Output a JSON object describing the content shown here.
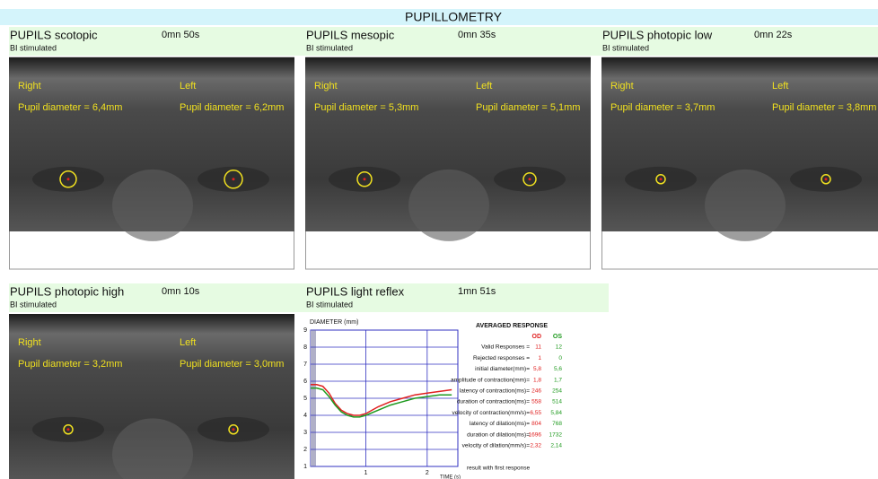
{
  "header": {
    "title": "PUPILLOMETRY"
  },
  "panels": [
    {
      "title": "PUPILS scotopic",
      "time": "0mn 50s",
      "subtitle": "BI stimulated",
      "right": "Right",
      "left": "Left",
      "right_diameter": "Pupil diameter = 6,4mm",
      "left_diameter": "Pupil diameter = 6,2mm"
    },
    {
      "title": "PUPILS mesopic",
      "time": "0mn 35s",
      "subtitle": "BI stimulated",
      "right": "Right",
      "left": "Left",
      "right_diameter": "Pupil diameter = 5,3mm",
      "left_diameter": "Pupil diameter = 5,1mm"
    },
    {
      "title": "PUPILS photopic low",
      "time": "0mn 22s",
      "subtitle": "BI stimulated",
      "right": "Right",
      "left": "Left",
      "right_diameter": "Pupil diameter = 3,7mm",
      "left_diameter": "Pupil diameter = 3,8mm"
    },
    {
      "title": "PUPILS photopic high",
      "time": "0mn 10s",
      "subtitle": "BI stimulated",
      "right": "Right",
      "left": "Left",
      "right_diameter": "Pupil diameter = 3,2mm",
      "left_diameter": "Pupil diameter = 3,0mm"
    }
  ],
  "light_reflex": {
    "title": "PUPILS light reflex",
    "time": "1mn 51s",
    "subtitle": "BI stimulated",
    "chart": {
      "type": "line",
      "y_label": "DIAMETER (mm)",
      "x_label": "TIME (s)",
      "x": [
        0.1,
        0.2,
        0.3,
        0.4,
        0.5,
        0.6,
        0.7,
        0.8,
        0.9,
        1.0,
        1.2,
        1.4,
        1.6,
        1.8,
        2.0,
        2.2,
        2.4
      ],
      "xlim": [
        0.1,
        2.5
      ],
      "ylim": [
        1,
        9
      ],
      "yticks": [
        1,
        2,
        3,
        4,
        5,
        6,
        7,
        8,
        9
      ],
      "xticks": [
        1,
        2
      ],
      "grid": true,
      "series": [
        {
          "color": "#e02020",
          "values": [
            5.8,
            5.8,
            5.7,
            5.3,
            4.7,
            4.3,
            4.1,
            4.0,
            4.0,
            4.1,
            4.5,
            4.8,
            5.0,
            5.2,
            5.3,
            5.4,
            5.5
          ]
        },
        {
          "color": "#1f9a1f",
          "values": [
            5.6,
            5.6,
            5.5,
            5.1,
            4.6,
            4.2,
            4.0,
            3.9,
            3.9,
            4.0,
            4.3,
            4.6,
            4.8,
            5.0,
            5.1,
            5.2,
            5.2
          ]
        }
      ]
    },
    "table": {
      "title": "AVERAGED RESPONSE",
      "columns": [
        "OD",
        "OS"
      ],
      "rows": [
        {
          "label": "Valid Responses =",
          "values": [
            "11",
            "12"
          ]
        },
        {
          "label": "Rejected responses =",
          "values": [
            "1",
            "0"
          ]
        },
        {
          "label": "initial diameter(mm)=",
          "values": [
            "5,8",
            "5,6"
          ]
        },
        {
          "label": "amplitude of contraction(mm)=",
          "values": [
            "1,8",
            "1,7"
          ]
        },
        {
          "label": "latency of contraction(ms)=",
          "values": [
            "246",
            "254"
          ]
        },
        {
          "label": "duration of contraction(ms)=",
          "values": [
            "558",
            "514"
          ]
        },
        {
          "label": "velocity of contraction(mm/s)=",
          "values": [
            "6,55",
            "5,84"
          ]
        },
        {
          "label": "latency of dilation(ms)=",
          "values": [
            "804",
            "768"
          ]
        },
        {
          "label": "duration of dilation(ms)=",
          "values": [
            "1696",
            "1732"
          ]
        },
        {
          "label": "velocity of dilation(mm/s)=",
          "values": [
            "2,32",
            "2,14"
          ]
        }
      ]
    },
    "note": "result with first response"
  }
}
